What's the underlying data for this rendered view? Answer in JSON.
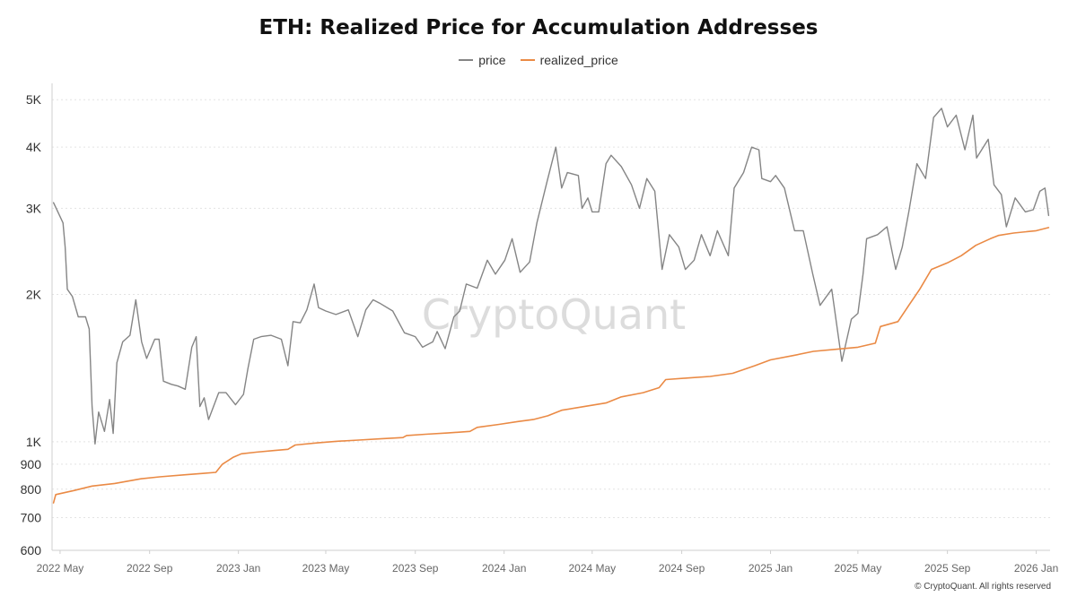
{
  "chart_data": {
    "type": "line",
    "title": "ETH: Realized Price for Accumulation Addresses",
    "yscale": "log",
    "ylim": [
      600,
      5400
    ],
    "xlim": [
      "2022-04-20",
      "2026-01-20"
    ],
    "y_ticks": [
      {
        "value": 5000,
        "label": "5K"
      },
      {
        "value": 4000,
        "label": "4K"
      },
      {
        "value": 3000,
        "label": "3K"
      },
      {
        "value": 2000,
        "label": "2K"
      },
      {
        "value": 1000,
        "label": "1K"
      },
      {
        "value": 900,
        "label": "900"
      },
      {
        "value": 800,
        "label": "800"
      },
      {
        "value": 700,
        "label": "700"
      },
      {
        "value": 600,
        "label": "600"
      }
    ],
    "x_ticks": [
      {
        "date": "2022-05-01",
        "label": "2022 May"
      },
      {
        "date": "2022-09-01",
        "label": "2022 Sep"
      },
      {
        "date": "2023-01-01",
        "label": "2023 Jan"
      },
      {
        "date": "2023-05-01",
        "label": "2023 May"
      },
      {
        "date": "2023-09-01",
        "label": "2023 Sep"
      },
      {
        "date": "2024-01-01",
        "label": "2024 Jan"
      },
      {
        "date": "2024-05-01",
        "label": "2024 May"
      },
      {
        "date": "2024-09-01",
        "label": "2024 Sep"
      },
      {
        "date": "2025-01-01",
        "label": "2025 Jan"
      },
      {
        "date": "2025-05-01",
        "label": "2025 May"
      },
      {
        "date": "2025-09-01",
        "label": "2025 Sep"
      },
      {
        "date": "2026-01-01",
        "label": "2026 Jan"
      }
    ],
    "grid": "horizontal",
    "legend": "top-center",
    "watermark": "CryptoQuant",
    "series": [
      {
        "name": "price",
        "color": "#858585",
        "points": [
          [
            "2022-04-22",
            3080
          ],
          [
            "2022-04-28",
            2950
          ],
          [
            "2022-05-05",
            2800
          ],
          [
            "2022-05-08",
            2500
          ],
          [
            "2022-05-11",
            2050
          ],
          [
            "2022-05-18",
            1980
          ],
          [
            "2022-05-26",
            1800
          ],
          [
            "2022-06-05",
            1800
          ],
          [
            "2022-06-10",
            1700
          ],
          [
            "2022-06-14",
            1180
          ],
          [
            "2022-06-18",
            990
          ],
          [
            "2022-06-23",
            1150
          ],
          [
            "2022-07-01",
            1050
          ],
          [
            "2022-07-08",
            1220
          ],
          [
            "2022-07-13",
            1040
          ],
          [
            "2022-07-18",
            1450
          ],
          [
            "2022-07-26",
            1600
          ],
          [
            "2022-08-05",
            1650
          ],
          [
            "2022-08-13",
            1950
          ],
          [
            "2022-08-21",
            1600
          ],
          [
            "2022-08-28",
            1480
          ],
          [
            "2022-09-08",
            1620
          ],
          [
            "2022-09-14",
            1620
          ],
          [
            "2022-09-20",
            1330
          ],
          [
            "2022-10-01",
            1310
          ],
          [
            "2022-10-10",
            1300
          ],
          [
            "2022-10-20",
            1280
          ],
          [
            "2022-10-29",
            1560
          ],
          [
            "2022-11-04",
            1640
          ],
          [
            "2022-11-09",
            1180
          ],
          [
            "2022-11-15",
            1230
          ],
          [
            "2022-11-21",
            1110
          ],
          [
            "2022-12-05",
            1260
          ],
          [
            "2022-12-15",
            1260
          ],
          [
            "2022-12-28",
            1190
          ],
          [
            "2023-01-08",
            1250
          ],
          [
            "2023-01-14",
            1410
          ],
          [
            "2023-01-22",
            1620
          ],
          [
            "2023-02-01",
            1640
          ],
          [
            "2023-02-15",
            1650
          ],
          [
            "2023-03-01",
            1620
          ],
          [
            "2023-03-10",
            1430
          ],
          [
            "2023-03-17",
            1760
          ],
          [
            "2023-03-27",
            1750
          ],
          [
            "2023-04-05",
            1860
          ],
          [
            "2023-04-15",
            2100
          ],
          [
            "2023-04-21",
            1880
          ],
          [
            "2023-05-01",
            1850
          ],
          [
            "2023-05-15",
            1820
          ],
          [
            "2023-06-01",
            1860
          ],
          [
            "2023-06-14",
            1640
          ],
          [
            "2023-06-25",
            1860
          ],
          [
            "2023-07-05",
            1950
          ],
          [
            "2023-07-14",
            1920
          ],
          [
            "2023-08-01",
            1850
          ],
          [
            "2023-08-17",
            1670
          ],
          [
            "2023-09-01",
            1640
          ],
          [
            "2023-09-11",
            1560
          ],
          [
            "2023-09-25",
            1600
          ],
          [
            "2023-10-01",
            1680
          ],
          [
            "2023-10-12",
            1550
          ],
          [
            "2023-10-24",
            1800
          ],
          [
            "2023-11-01",
            1850
          ],
          [
            "2023-11-10",
            2100
          ],
          [
            "2023-11-25",
            2060
          ],
          [
            "2023-12-09",
            2350
          ],
          [
            "2023-12-20",
            2200
          ],
          [
            "2024-01-02",
            2350
          ],
          [
            "2024-01-12",
            2600
          ],
          [
            "2024-01-23",
            2220
          ],
          [
            "2024-02-05",
            2330
          ],
          [
            "2024-02-15",
            2800
          ],
          [
            "2024-02-29",
            3400
          ],
          [
            "2024-03-12",
            4000
          ],
          [
            "2024-03-20",
            3300
          ],
          [
            "2024-03-28",
            3550
          ],
          [
            "2024-04-12",
            3500
          ],
          [
            "2024-04-17",
            3000
          ],
          [
            "2024-04-25",
            3150
          ],
          [
            "2024-05-01",
            2950
          ],
          [
            "2024-05-10",
            2950
          ],
          [
            "2024-05-20",
            3700
          ],
          [
            "2024-05-27",
            3850
          ],
          [
            "2024-06-10",
            3650
          ],
          [
            "2024-06-24",
            3350
          ],
          [
            "2024-07-05",
            3000
          ],
          [
            "2024-07-15",
            3450
          ],
          [
            "2024-07-26",
            3250
          ],
          [
            "2024-08-05",
            2250
          ],
          [
            "2024-08-15",
            2650
          ],
          [
            "2024-08-28",
            2500
          ],
          [
            "2024-09-06",
            2250
          ],
          [
            "2024-09-18",
            2350
          ],
          [
            "2024-09-28",
            2650
          ],
          [
            "2024-10-10",
            2400
          ],
          [
            "2024-10-20",
            2700
          ],
          [
            "2024-11-04",
            2400
          ],
          [
            "2024-11-12",
            3300
          ],
          [
            "2024-11-25",
            3550
          ],
          [
            "2024-12-06",
            4000
          ],
          [
            "2024-12-16",
            3950
          ],
          [
            "2024-12-20",
            3450
          ],
          [
            "2025-01-01",
            3400
          ],
          [
            "2025-01-08",
            3500
          ],
          [
            "2025-01-20",
            3300
          ],
          [
            "2025-02-03",
            2700
          ],
          [
            "2025-02-15",
            2700
          ],
          [
            "2025-02-28",
            2200
          ],
          [
            "2025-03-10",
            1900
          ],
          [
            "2025-03-26",
            2050
          ],
          [
            "2025-04-09",
            1460
          ],
          [
            "2025-04-22",
            1780
          ],
          [
            "2025-05-01",
            1830
          ],
          [
            "2025-05-08",
            2200
          ],
          [
            "2025-05-13",
            2600
          ],
          [
            "2025-05-28",
            2650
          ],
          [
            "2025-06-10",
            2750
          ],
          [
            "2025-06-22",
            2250
          ],
          [
            "2025-07-01",
            2500
          ],
          [
            "2025-07-10",
            2950
          ],
          [
            "2025-07-21",
            3700
          ],
          [
            "2025-08-02",
            3450
          ],
          [
            "2025-08-13",
            4600
          ],
          [
            "2025-08-24",
            4800
          ],
          [
            "2025-09-01",
            4400
          ],
          [
            "2025-09-13",
            4650
          ],
          [
            "2025-09-25",
            3950
          ],
          [
            "2025-10-06",
            4650
          ],
          [
            "2025-10-11",
            3800
          ],
          [
            "2025-10-27",
            4150
          ],
          [
            "2025-11-04",
            3350
          ],
          [
            "2025-11-14",
            3200
          ],
          [
            "2025-11-21",
            2750
          ],
          [
            "2025-12-03",
            3150
          ],
          [
            "2025-12-17",
            2950
          ],
          [
            "2025-12-28",
            2980
          ],
          [
            "2026-01-06",
            3250
          ],
          [
            "2026-01-13",
            3300
          ],
          [
            "2026-01-18",
            2900
          ]
        ]
      },
      {
        "name": "realized_price",
        "color": "#ea8a45",
        "points": [
          [
            "2022-04-22",
            750
          ],
          [
            "2022-04-25",
            780
          ],
          [
            "2022-05-20",
            795
          ],
          [
            "2022-06-14",
            812
          ],
          [
            "2022-07-15",
            822
          ],
          [
            "2022-08-20",
            840
          ],
          [
            "2022-09-15",
            848
          ],
          [
            "2022-10-20",
            856
          ],
          [
            "2022-11-15",
            862
          ],
          [
            "2022-12-01",
            866
          ],
          [
            "2022-12-10",
            900
          ],
          [
            "2022-12-25",
            930
          ],
          [
            "2023-01-05",
            945
          ],
          [
            "2023-01-25",
            952
          ],
          [
            "2023-02-20",
            960
          ],
          [
            "2023-03-10",
            965
          ],
          [
            "2023-03-20",
            985
          ],
          [
            "2023-04-20",
            995
          ],
          [
            "2023-05-15",
            1002
          ],
          [
            "2023-06-15",
            1008
          ],
          [
            "2023-07-15",
            1014
          ],
          [
            "2023-08-15",
            1020
          ],
          [
            "2023-08-20",
            1030
          ],
          [
            "2023-09-15",
            1036
          ],
          [
            "2023-10-15",
            1042
          ],
          [
            "2023-11-15",
            1050
          ],
          [
            "2023-11-25",
            1070
          ],
          [
            "2023-12-25",
            1085
          ],
          [
            "2024-01-20",
            1100
          ],
          [
            "2024-02-10",
            1110
          ],
          [
            "2024-03-01",
            1130
          ],
          [
            "2024-03-20",
            1160
          ],
          [
            "2024-04-20",
            1180
          ],
          [
            "2024-05-20",
            1200
          ],
          [
            "2024-06-10",
            1235
          ],
          [
            "2024-07-10",
            1260
          ],
          [
            "2024-08-01",
            1290
          ],
          [
            "2024-08-10",
            1340
          ],
          [
            "2024-09-10",
            1350
          ],
          [
            "2024-10-10",
            1360
          ],
          [
            "2024-11-10",
            1380
          ],
          [
            "2024-12-10",
            1430
          ],
          [
            "2025-01-01",
            1470
          ],
          [
            "2025-02-01",
            1500
          ],
          [
            "2025-03-01",
            1530
          ],
          [
            "2025-04-01",
            1545
          ],
          [
            "2025-05-01",
            1560
          ],
          [
            "2025-05-25",
            1590
          ],
          [
            "2025-06-01",
            1720
          ],
          [
            "2025-06-25",
            1760
          ],
          [
            "2025-07-10",
            1900
          ],
          [
            "2025-07-25",
            2050
          ],
          [
            "2025-08-10",
            2250
          ],
          [
            "2025-09-01",
            2320
          ],
          [
            "2025-09-20",
            2400
          ],
          [
            "2025-10-10",
            2520
          ],
          [
            "2025-10-30",
            2600
          ],
          [
            "2025-11-10",
            2640
          ],
          [
            "2025-12-01",
            2670
          ],
          [
            "2026-01-01",
            2700
          ],
          [
            "2026-01-18",
            2740
          ]
        ]
      }
    ]
  },
  "copyright": "© CryptoQuant. All rights reserved"
}
